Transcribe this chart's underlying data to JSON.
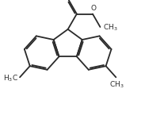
{
  "background_color": "#ffffff",
  "line_color": "#2a2a2a",
  "line_width": 1.3,
  "font_size": 6.5,
  "bold": false
}
